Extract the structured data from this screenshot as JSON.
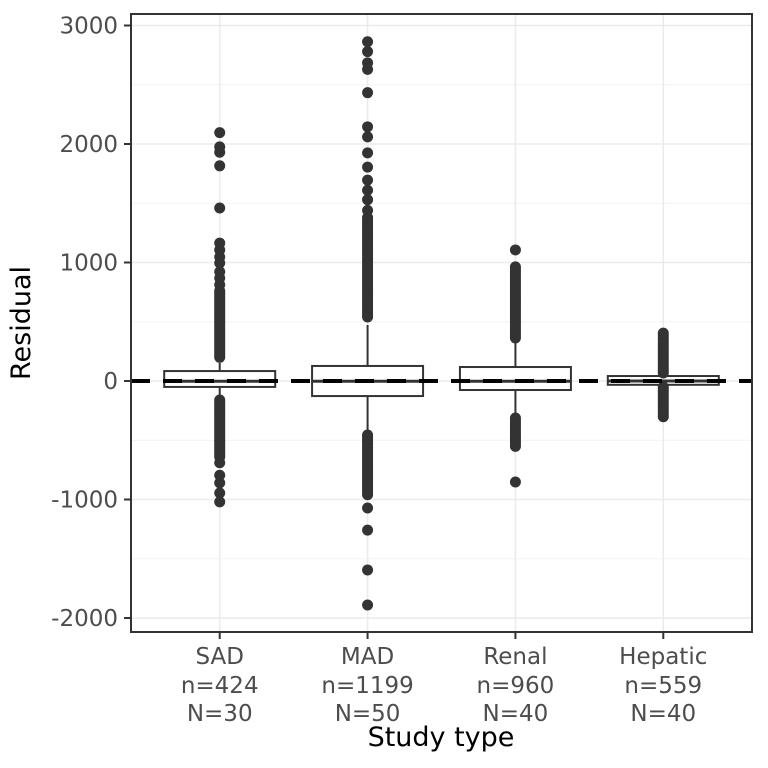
{
  "chart_data": {
    "type": "boxplot",
    "title": "",
    "xlabel": "Study type",
    "ylabel": "Residual",
    "ylim": [
      -2118,
      3097
    ],
    "yticks": [
      3000,
      2000,
      1000,
      0,
      -1000,
      -2000
    ],
    "yticks_minor": [
      2500,
      1500,
      500,
      -500,
      -1500
    ],
    "grid": true,
    "legend": "none",
    "reference_line": {
      "y": 0,
      "style": "dashed"
    },
    "colors": {
      "stroke": "#333333",
      "point": "#333333",
      "box_fill": "#FFFFFF",
      "grid_major": "#EBEBEB",
      "grid_minor": "#F4F4F4",
      "panel_border": "#333333",
      "tick_text": "#4D4D4D",
      "axis_title": "#000000",
      "reference": "#000000",
      "background": "#FFFFFF"
    },
    "categories": [
      {
        "label": "SAD",
        "n_label": "n=424",
        "N_label": "N=30",
        "box": {
          "q1": -50,
          "median": -2,
          "q3": 84,
          "whisker_low": -143,
          "whisker_high": 152
        },
        "outliers_high": [
          200,
          216,
          232,
          248,
          264,
          280,
          296,
          312,
          328,
          344,
          360,
          376,
          392,
          408,
          424,
          440,
          456,
          472,
          488,
          504,
          520,
          536,
          552,
          568,
          584,
          600,
          616,
          632,
          648,
          664,
          680,
          696,
          712,
          728,
          744,
          760,
          812,
          868,
          922,
          996,
          1046,
          1106,
          1164,
          1460,
          1816,
          1930,
          1976,
          2096
        ],
        "outliers_low": [
          -160,
          -176,
          -192,
          -208,
          -224,
          -240,
          -256,
          -272,
          -288,
          -304,
          -320,
          -336,
          -352,
          -368,
          -384,
          -400,
          -416,
          -432,
          -448,
          -464,
          -480,
          -496,
          -512,
          -528,
          -544,
          -560,
          -576,
          -592,
          -608,
          -624,
          -640,
          -690,
          -795,
          -860,
          -945,
          -1020
        ]
      },
      {
        "label": "MAD",
        "n_label": "n=1199",
        "N_label": "N=50",
        "box": {
          "q1": -127,
          "median": -2,
          "q3": 127,
          "whisker_low": -456,
          "whisker_high": 473
        },
        "outliers_high": [
          540,
          560,
          580,
          600,
          620,
          640,
          660,
          680,
          700,
          720,
          740,
          760,
          780,
          800,
          820,
          840,
          860,
          880,
          900,
          920,
          940,
          960,
          980,
          1000,
          1020,
          1040,
          1060,
          1080,
          1100,
          1120,
          1140,
          1160,
          1180,
          1200,
          1220,
          1240,
          1260,
          1280,
          1300,
          1320,
          1340,
          1360,
          1380,
          1440,
          1530,
          1610,
          1695,
          1805,
          1925,
          2060,
          2145,
          2433,
          2630,
          2685,
          2780,
          2863
        ],
        "outliers_low": [
          -456,
          -474,
          -492,
          -510,
          -528,
          -546,
          -564,
          -582,
          -600,
          -618,
          -636,
          -654,
          -672,
          -690,
          -708,
          -726,
          -744,
          -762,
          -780,
          -798,
          -816,
          -834,
          -852,
          -870,
          -888,
          -906,
          -924,
          -942,
          -960,
          -1072,
          -1258,
          -1595,
          -1890
        ]
      },
      {
        "label": "Renal",
        "n_label": "n=960",
        "N_label": "N=40",
        "box": {
          "q1": -76,
          "median": -2,
          "q3": 118,
          "whisker_low": -312,
          "whisker_high": 363
        },
        "outliers_high": [
          363,
          383,
          403,
          423,
          443,
          463,
          483,
          503,
          523,
          543,
          563,
          583,
          603,
          623,
          643,
          663,
          683,
          703,
          723,
          743,
          763,
          783,
          803,
          823,
          843,
          863,
          883,
          903,
          923,
          943,
          963,
          1106
        ],
        "outliers_low": [
          -312,
          -332,
          -352,
          -372,
          -392,
          -412,
          -432,
          -452,
          -472,
          -492,
          -512,
          -532,
          -552,
          -852
        ]
      },
      {
        "label": "Hepatic",
        "n_label": "n=559",
        "N_label": "N=40",
        "box": {
          "q1": -32,
          "median": 0,
          "q3": 42,
          "whisker_low": -50,
          "whisker_high": 68
        },
        "outliers_high": [
          68,
          89,
          110,
          131,
          152,
          173,
          194,
          215,
          236,
          257,
          278,
          299,
          320,
          341,
          362,
          383,
          404
        ],
        "outliers_low": [
          -50,
          -71,
          -92,
          -113,
          -134,
          -155,
          -176,
          -197,
          -218,
          -239,
          -260,
          -281,
          -302
        ]
      }
    ]
  }
}
